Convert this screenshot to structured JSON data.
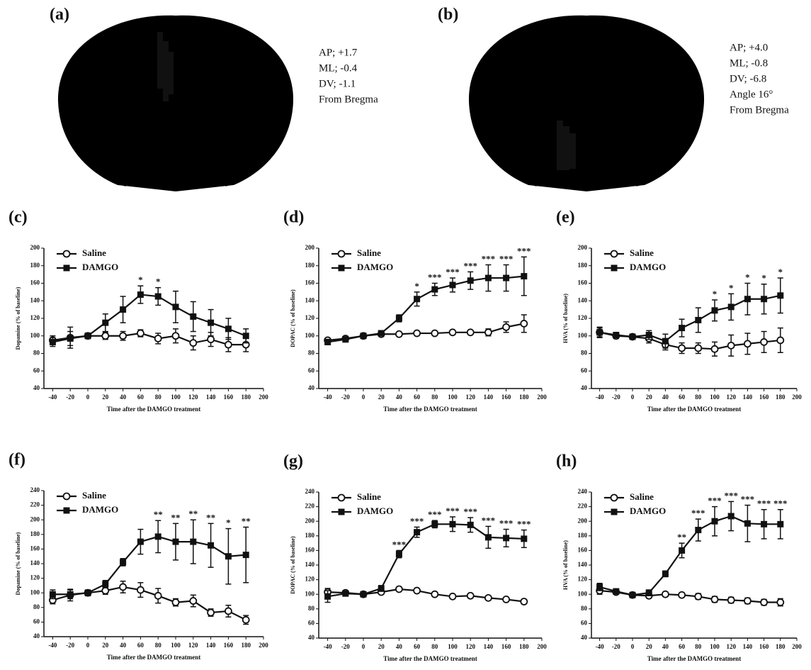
{
  "brain_panels": [
    {
      "label": "(a)",
      "coords": [
        "AP; +1.7",
        "ML; -0.4",
        "DV; -1.1",
        "From Bregma"
      ]
    },
    {
      "label": "(b)",
      "coords": [
        "AP; +4.0",
        "ML; -0.8",
        "DV; -6.8",
        "Angle 16°",
        "From Bregma"
      ]
    }
  ],
  "chart_data": [
    {
      "type": "line",
      "label": "(c)",
      "ylabel": "Dopamine (% of baseline)",
      "xlabel": "Time after the DAMGO treatment",
      "x": [
        -40,
        -20,
        0,
        20,
        40,
        60,
        80,
        100,
        120,
        140,
        160,
        180
      ],
      "xlim": [
        -50,
        200
      ],
      "xticks": [
        -40,
        -20,
        0,
        20,
        40,
        60,
        80,
        100,
        120,
        140,
        160,
        180,
        200
      ],
      "ylim": [
        40,
        200
      ],
      "yticks": [
        40,
        60,
        80,
        100,
        120,
        140,
        160,
        180,
        200
      ],
      "legend": "upper left",
      "series": [
        {
          "name": "Saline",
          "color": "#111111",
          "marker": "circle-open",
          "values": [
            95,
            98,
            100,
            100,
            100,
            103,
            97,
            100,
            92,
            96,
            90,
            90
          ],
          "errors": [
            5,
            12,
            3,
            4,
            5,
            4,
            6,
            8,
            8,
            8,
            8,
            8
          ]
        },
        {
          "name": "DAMGO",
          "color": "#111111",
          "marker": "square",
          "values": [
            93,
            97,
            100,
            115,
            130,
            147,
            145,
            133,
            122,
            115,
            108,
            100
          ],
          "errors": [
            5,
            8,
            3,
            10,
            15,
            10,
            10,
            18,
            17,
            15,
            12,
            8
          ]
        }
      ],
      "annotations": [
        null,
        null,
        null,
        null,
        null,
        "*",
        "*",
        null,
        null,
        null,
        null,
        null
      ]
    },
    {
      "type": "line",
      "label": "(d)",
      "ylabel": "DOPAC (% of baseline)",
      "xlabel": "Time after the DAMGO treatment",
      "x": [
        -40,
        -20,
        0,
        20,
        40,
        60,
        80,
        100,
        120,
        140,
        160,
        180
      ],
      "xlim": [
        -50,
        200
      ],
      "xticks": [
        -40,
        -20,
        0,
        20,
        40,
        60,
        80,
        100,
        120,
        140,
        160,
        180,
        200
      ],
      "ylim": [
        40,
        200
      ],
      "yticks": [
        40,
        60,
        80,
        100,
        120,
        140,
        160,
        180,
        200
      ],
      "legend": "upper left",
      "series": [
        {
          "name": "Saline",
          "color": "#111111",
          "marker": "circle-open",
          "values": [
            95,
            97,
            100,
            102,
            102,
            103,
            103,
            104,
            104,
            104,
            110,
            114
          ],
          "errors": [
            2,
            2,
            2,
            2,
            2,
            2,
            2,
            2,
            2,
            4,
            6,
            10
          ]
        },
        {
          "name": "DAMGO",
          "color": "#111111",
          "marker": "square",
          "values": [
            93,
            96,
            100,
            103,
            120,
            142,
            153,
            158,
            163,
            166,
            166,
            168
          ],
          "errors": [
            3,
            3,
            2,
            3,
            4,
            8,
            7,
            8,
            10,
            15,
            15,
            22
          ]
        }
      ],
      "annotations": [
        null,
        null,
        null,
        null,
        null,
        "*",
        "***",
        "***",
        "***",
        "***",
        "***",
        "***"
      ]
    },
    {
      "type": "line",
      "label": "(e)",
      "ylabel": "HVA (% of baseline)",
      "xlabel": "Time after the DAMGO treatment",
      "x": [
        -40,
        -20,
        0,
        20,
        40,
        60,
        80,
        100,
        120,
        140,
        160,
        180
      ],
      "xlim": [
        -50,
        200
      ],
      "xticks": [
        -40,
        -20,
        0,
        20,
        40,
        60,
        80,
        100,
        120,
        140,
        160,
        180,
        200
      ],
      "ylim": [
        40,
        200
      ],
      "yticks": [
        40,
        60,
        80,
        100,
        120,
        140,
        160,
        180,
        200
      ],
      "legend": "upper left",
      "series": [
        {
          "name": "Saline",
          "color": "#111111",
          "marker": "circle-open",
          "values": [
            104,
            100,
            99,
            97,
            90,
            86,
            86,
            85,
            89,
            91,
            93,
            95
          ],
          "errors": [
            6,
            3,
            2,
            5,
            6,
            6,
            6,
            8,
            12,
            12,
            12,
            14
          ]
        },
        {
          "name": "DAMGO",
          "color": "#111111",
          "marker": "square",
          "values": [
            104,
            101,
            99,
            101,
            94,
            109,
            118,
            129,
            133,
            142,
            142,
            146
          ],
          "errors": [
            5,
            3,
            3,
            5,
            8,
            10,
            14,
            12,
            15,
            18,
            17,
            20
          ]
        }
      ],
      "annotations": [
        null,
        null,
        null,
        null,
        null,
        null,
        null,
        "*",
        "*",
        "*",
        "*",
        "*"
      ]
    },
    {
      "type": "line",
      "label": "(f)",
      "ylabel": "Dopamine (% of baseline)",
      "xlabel": "Time after the DAMGO treatment",
      "x": [
        -40,
        -20,
        0,
        20,
        40,
        60,
        80,
        100,
        120,
        140,
        160,
        180
      ],
      "xlim": [
        -50,
        200
      ],
      "xticks": [
        -40,
        -20,
        0,
        20,
        40,
        60,
        80,
        100,
        120,
        140,
        160,
        180,
        200
      ],
      "ylim": [
        40,
        240
      ],
      "yticks": [
        40,
        60,
        80,
        100,
        120,
        140,
        160,
        180,
        200,
        220,
        240
      ],
      "legend": "upper left",
      "series": [
        {
          "name": "Saline",
          "color": "#111111",
          "marker": "circle-open",
          "values": [
            90,
            97,
            100,
            103,
            108,
            104,
            96,
            87,
            89,
            73,
            75,
            63
          ],
          "errors": [
            5,
            8,
            4,
            5,
            8,
            10,
            10,
            5,
            8,
            5,
            8,
            6
          ]
        },
        {
          "name": "DAMGO",
          "color": "#111111",
          "marker": "square",
          "values": [
            98,
            98,
            100,
            112,
            142,
            170,
            177,
            170,
            170,
            165,
            150,
            152
          ],
          "errors": [
            6,
            6,
            3,
            5,
            5,
            17,
            22,
            25,
            30,
            30,
            38,
            38
          ]
        }
      ],
      "annotations": [
        null,
        null,
        null,
        null,
        null,
        null,
        "**",
        "**",
        "**",
        "**",
        "*",
        "**"
      ]
    },
    {
      "type": "line",
      "label": "(g)",
      "ylabel": "DOPAC (% of baseline)",
      "xlabel": "Time after the DAMGO treatment",
      "x": [
        -40,
        -20,
        0,
        20,
        40,
        60,
        80,
        100,
        120,
        140,
        160,
        180
      ],
      "xlim": [
        -50,
        200
      ],
      "xticks": [
        -40,
        -20,
        0,
        20,
        40,
        60,
        80,
        100,
        120,
        140,
        160,
        180,
        200
      ],
      "ylim": [
        40,
        240
      ],
      "yticks": [
        40,
        60,
        80,
        100,
        120,
        140,
        160,
        180,
        200,
        220,
        240
      ],
      "legend": "upper left",
      "series": [
        {
          "name": "Saline",
          "color": "#111111",
          "marker": "circle-open",
          "values": [
            103,
            102,
            100,
            103,
            107,
            105,
            100,
            97,
            98,
            95,
            93,
            90
          ],
          "errors": [
            5,
            3,
            2,
            2,
            2,
            2,
            2,
            2,
            2,
            2,
            2,
            2
          ]
        },
        {
          "name": "DAMGO",
          "color": "#111111",
          "marker": "square",
          "values": [
            97,
            101,
            100,
            108,
            155,
            185,
            196,
            196,
            195,
            178,
            177,
            176
          ],
          "errors": [
            8,
            3,
            2,
            4,
            5,
            7,
            5,
            10,
            10,
            15,
            12,
            12
          ]
        }
      ],
      "annotations": [
        null,
        null,
        null,
        null,
        "***",
        "***",
        "***",
        "***",
        "***",
        "***",
        "***",
        "***"
      ]
    },
    {
      "type": "line",
      "label": "(h)",
      "ylabel": "HVA (% of baseline)",
      "xlabel": "Time after the DAMGO treatment",
      "x": [
        -40,
        -20,
        0,
        20,
        40,
        60,
        80,
        100,
        120,
        140,
        160,
        180
      ],
      "xlim": [
        -50,
        200
      ],
      "xticks": [
        -40,
        -20,
        0,
        20,
        40,
        60,
        80,
        100,
        120,
        140,
        160,
        180,
        200
      ],
      "ylim": [
        40,
        240
      ],
      "yticks": [
        40,
        60,
        80,
        100,
        120,
        140,
        160,
        180,
        200,
        220,
        240
      ],
      "legend": "upper left",
      "series": [
        {
          "name": "Saline",
          "color": "#111111",
          "marker": "circle-open",
          "values": [
            105,
            103,
            99,
            98,
            100,
            99,
            97,
            93,
            92,
            91,
            89,
            89
          ],
          "errors": [
            5,
            3,
            3,
            3,
            3,
            3,
            4,
            4,
            4,
            4,
            4,
            5
          ]
        },
        {
          "name": "DAMGO",
          "color": "#111111",
          "marker": "square",
          "values": [
            110,
            104,
            99,
            102,
            128,
            160,
            188,
            200,
            207,
            197,
            196,
            196
          ],
          "errors": [
            5,
            3,
            3,
            4,
            4,
            10,
            15,
            20,
            20,
            25,
            20,
            20
          ]
        }
      ],
      "annotations": [
        null,
        null,
        null,
        null,
        null,
        "**",
        "***",
        "***",
        "***",
        "***",
        "***",
        "***"
      ]
    }
  ]
}
